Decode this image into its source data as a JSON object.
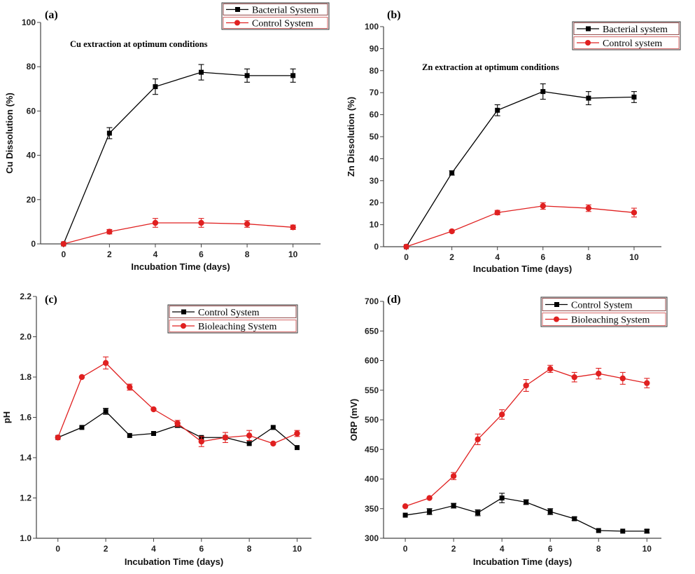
{
  "colors": {
    "black_series": "#000000",
    "red_series": "#e02020",
    "axis": "#444444"
  },
  "chart_data": [
    {
      "panel": "(a)",
      "type": "line",
      "title": "Cu extraction at optimum conditions",
      "xlabel": "Incubation Time (days)",
      "ylabel": "Cu Dissolution (%)",
      "xlim": [
        -1,
        11.2
      ],
      "ylim": [
        0,
        100
      ],
      "xticks": [
        0,
        2,
        4,
        6,
        8,
        10
      ],
      "yticks": [
        0,
        20,
        40,
        60,
        80,
        100
      ],
      "legend_position": "top-right",
      "series": [
        {
          "name": "Bacterial System",
          "color": "#000000",
          "marker": "square",
          "x": [
            0,
            2,
            4,
            6,
            8,
            10
          ],
          "y": [
            0,
            50,
            71,
            77.5,
            76,
            76
          ],
          "err": [
            0,
            2.5,
            3.5,
            3.5,
            3,
            3
          ]
        },
        {
          "name": "Control System",
          "color": "#e02020",
          "marker": "circle",
          "x": [
            0,
            2,
            4,
            6,
            8,
            10
          ],
          "y": [
            0,
            5.5,
            9.5,
            9.5,
            9,
            7.5
          ],
          "err": [
            0,
            1,
            2,
            2,
            1.5,
            1
          ]
        }
      ]
    },
    {
      "panel": "(b)",
      "type": "line",
      "title": "Zn extraction at optimum conditions",
      "xlabel": "Incubation Time (days)",
      "ylabel": "Zn Dissolution (%)",
      "xlim": [
        -1,
        11.2
      ],
      "ylim": [
        0,
        100
      ],
      "xticks": [
        0,
        2,
        4,
        6,
        8,
        10
      ],
      "yticks": [
        0,
        10,
        20,
        30,
        40,
        50,
        60,
        70,
        80,
        90,
        100
      ],
      "legend_position": "top-right",
      "series": [
        {
          "name": "Bacterial system",
          "color": "#000000",
          "marker": "square",
          "x": [
            0,
            2,
            4,
            6,
            8,
            10
          ],
          "y": [
            0,
            33.5,
            62,
            70.5,
            67.5,
            68
          ],
          "err": [
            0,
            1,
            2.5,
            3.5,
            3,
            2.5
          ]
        },
        {
          "name": "Control system",
          "color": "#e02020",
          "marker": "circle",
          "x": [
            0,
            2,
            4,
            6,
            8,
            10
          ],
          "y": [
            0,
            7,
            15.5,
            18.5,
            17.5,
            15.5
          ],
          "err": [
            0,
            0.5,
            1,
            1.5,
            1.5,
            2
          ]
        }
      ]
    },
    {
      "panel": "(c)",
      "type": "line",
      "title": "",
      "xlabel": "Incubation Time (days)",
      "ylabel": "pH",
      "xlim": [
        -0.9,
        10.6
      ],
      "ylim": [
        1.0,
        2.2
      ],
      "xticks": [
        0,
        2,
        4,
        6,
        8,
        10
      ],
      "yticks": [
        1.0,
        1.2,
        1.4,
        1.6,
        1.8,
        2.0,
        2.2
      ],
      "ytick_labels": [
        "1.0",
        "1.2",
        "1.4",
        "1.6",
        "1.8",
        "2.0",
        "2.2"
      ],
      "legend_position": "top-right",
      "series": [
        {
          "name": "Control System",
          "color": "#000000",
          "marker": "square",
          "x": [
            0,
            1,
            2,
            3,
            4,
            5,
            6,
            7,
            8,
            9,
            10
          ],
          "y": [
            1.5,
            1.55,
            1.63,
            1.51,
            1.52,
            1.56,
            1.5,
            1.5,
            1.47,
            1.55,
            1.45
          ],
          "err": [
            0,
            0,
            0.015,
            0,
            0,
            0.01,
            0,
            0,
            0,
            0,
            0
          ]
        },
        {
          "name": "Bioleaching System",
          "color": "#e02020",
          "marker": "circle",
          "x": [
            0,
            1,
            2,
            3,
            4,
            5,
            6,
            7,
            8,
            9,
            10
          ],
          "y": [
            1.5,
            1.8,
            1.87,
            1.75,
            1.64,
            1.57,
            1.48,
            1.5,
            1.51,
            1.47,
            1.52
          ],
          "err": [
            0,
            0,
            0.03,
            0.015,
            0,
            0.015,
            0.025,
            0.025,
            0.025,
            0,
            0.015
          ]
        }
      ]
    },
    {
      "panel": "(d)",
      "type": "line",
      "title": "",
      "xlabel": "Incubation Time (days)",
      "ylabel": "ORP (mV)",
      "xlim": [
        -0.9,
        10.6
      ],
      "ylim": [
        300,
        700
      ],
      "xticks": [
        0,
        2,
        4,
        6,
        8,
        10
      ],
      "yticks": [
        300,
        350,
        400,
        450,
        500,
        550,
        600,
        650,
        700
      ],
      "legend_position": "top-right",
      "series": [
        {
          "name": "Control System",
          "color": "#000000",
          "marker": "square",
          "x": [
            0,
            1,
            2,
            3,
            4,
            5,
            6,
            7,
            8,
            9,
            10
          ],
          "y": [
            339,
            345,
            355,
            343,
            368,
            361,
            345,
            333,
            313,
            312,
            312
          ],
          "err": [
            0,
            5,
            4,
            5,
            8,
            4,
            5,
            3,
            0,
            0,
            3
          ]
        },
        {
          "name": "Bioleaching System",
          "color": "#e02020",
          "marker": "circle",
          "x": [
            0,
            1,
            2,
            3,
            4,
            5,
            6,
            7,
            8,
            9,
            10
          ],
          "y": [
            354,
            368,
            405,
            467,
            509,
            558,
            586,
            572,
            578,
            570,
            562
          ],
          "err": [
            0,
            0,
            6,
            9,
            8,
            10,
            6,
            8,
            9,
            10,
            8
          ]
        }
      ]
    }
  ]
}
